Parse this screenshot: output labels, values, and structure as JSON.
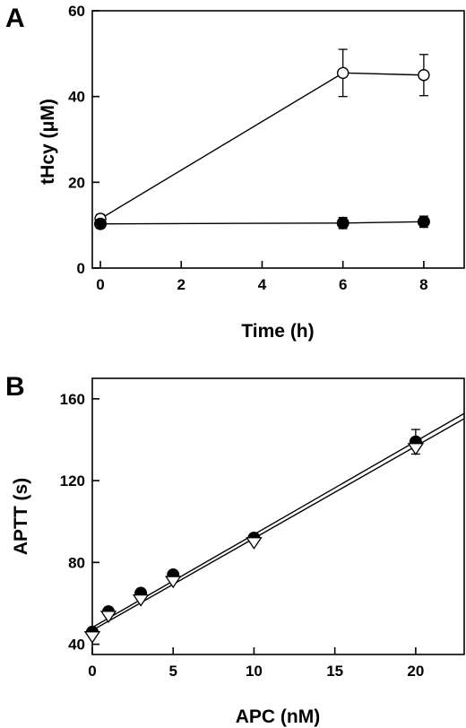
{
  "chart_data": [
    {
      "type": "line",
      "panel": "A",
      "title": "",
      "xlabel": "Time (h)",
      "ylabel": "tHcy (μM)",
      "xlim": [
        -0.2,
        9
      ],
      "ylim": [
        0,
        60
      ],
      "xticks": [
        0,
        2,
        4,
        6,
        8
      ],
      "yticks": [
        0,
        20,
        40,
        60
      ],
      "grid": false,
      "series": [
        {
          "marker": "open-circle",
          "x": [
            0,
            6,
            8
          ],
          "y": [
            11.5,
            45.5,
            45
          ],
          "yerr": [
            1,
            5.5,
            4.8
          ]
        },
        {
          "marker": "filled-circle",
          "x": [
            0,
            6,
            8
          ],
          "y": [
            10.3,
            10.5,
            10.8
          ],
          "yerr": [
            1,
            1.3,
            1.3
          ]
        }
      ]
    },
    {
      "type": "scatter",
      "panel": "B",
      "title": "",
      "xlabel": "APC (nM)",
      "ylabel": "APTT (s)",
      "xlim": [
        0,
        23
      ],
      "ylim": [
        35,
        170
      ],
      "xticks": [
        0,
        5,
        10,
        15,
        20
      ],
      "yticks": [
        40,
        80,
        120,
        160
      ],
      "grid": false,
      "series": [
        {
          "marker": "filled-circle",
          "x": [
            0,
            1,
            3,
            5,
            10,
            20
          ],
          "y": [
            46,
            56,
            65,
            74,
            92,
            139
          ],
          "yerr": [
            0,
            0,
            0,
            0,
            0,
            6
          ],
          "fit": {
            "slope": 4.55,
            "intercept": 48.2
          }
        },
        {
          "marker": "open-triangle-down",
          "x": [
            0,
            1,
            3,
            5,
            10,
            20
          ],
          "y": [
            44,
            54,
            62,
            71,
            90,
            136
          ],
          "yerr": [
            0,
            0,
            0,
            0,
            0,
            0
          ],
          "fit": {
            "slope": 4.5,
            "intercept": 46.8
          }
        }
      ]
    }
  ]
}
